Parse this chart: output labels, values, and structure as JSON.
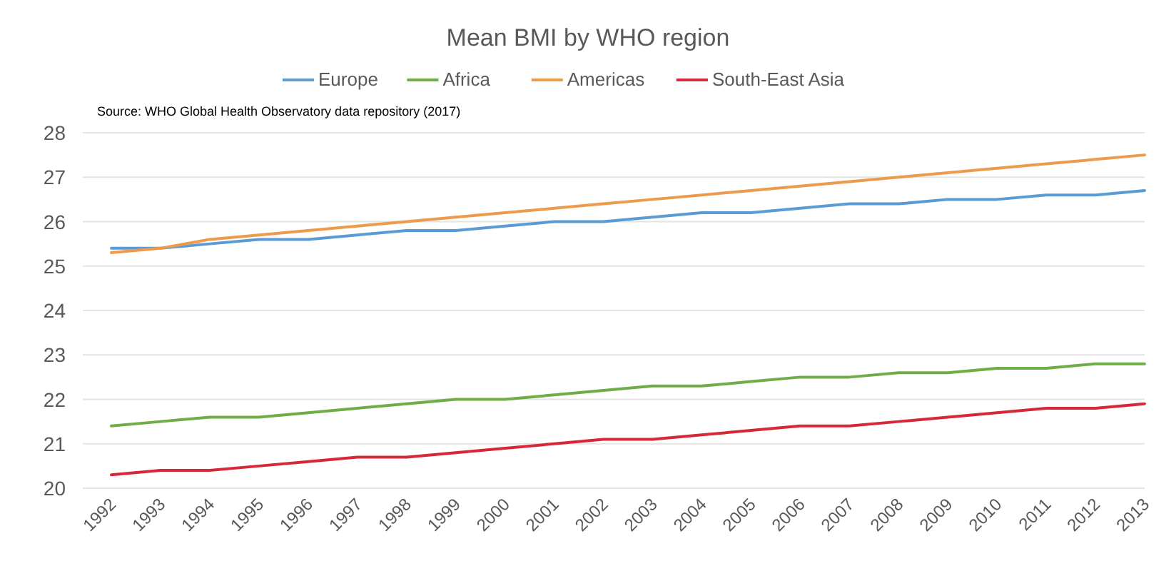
{
  "chart_data": {
    "type": "line",
    "title": "Mean BMI by WHO region",
    "annotations": [
      "Source: WHO Global Health Observatory data repository (2017)"
    ],
    "categories": [
      "1992",
      "1993",
      "1994",
      "1995",
      "1996",
      "1997",
      "1998",
      "1999",
      "2000",
      "2001",
      "2002",
      "2003",
      "2004",
      "2005",
      "2006",
      "2007",
      "2008",
      "2009",
      "2010",
      "2011",
      "2012",
      "2013"
    ],
    "series": [
      {
        "name": "Europe",
        "color": "#5b9bd5",
        "values": [
          25.4,
          25.4,
          25.5,
          25.6,
          25.6,
          25.7,
          25.8,
          25.8,
          25.9,
          26.0,
          26.0,
          26.1,
          26.2,
          26.2,
          26.3,
          26.4,
          26.4,
          26.5,
          26.5,
          26.6,
          26.6,
          26.7
        ]
      },
      {
        "name": "Africa",
        "color": "#70ad47",
        "values": [
          21.4,
          21.5,
          21.6,
          21.6,
          21.7,
          21.8,
          21.9,
          22.0,
          22.0,
          22.1,
          22.2,
          22.3,
          22.3,
          22.4,
          22.5,
          22.5,
          22.6,
          22.6,
          22.7,
          22.7,
          22.8,
          22.8
        ]
      },
      {
        "name": "Americas",
        "color": "#ed9a4d",
        "values": [
          25.3,
          25.4,
          25.6,
          25.7,
          25.8,
          25.9,
          26.0,
          26.1,
          26.2,
          26.3,
          26.4,
          26.5,
          26.6,
          26.7,
          26.8,
          26.9,
          27.0,
          27.1,
          27.2,
          27.3,
          27.4,
          27.5
        ]
      },
      {
        "name": "South-East Asia",
        "color": "#d62839",
        "values": [
          20.3,
          20.4,
          20.4,
          20.5,
          20.6,
          20.7,
          20.7,
          20.8,
          20.9,
          21.0,
          21.1,
          21.1,
          21.2,
          21.3,
          21.4,
          21.4,
          21.5,
          21.6,
          21.7,
          21.8,
          21.8,
          21.9
        ]
      }
    ],
    "ylim": [
      20,
      28
    ],
    "yticks": [
      20,
      21,
      22,
      23,
      24,
      25,
      26,
      27,
      28
    ],
    "grid": "y",
    "legend": "top"
  }
}
